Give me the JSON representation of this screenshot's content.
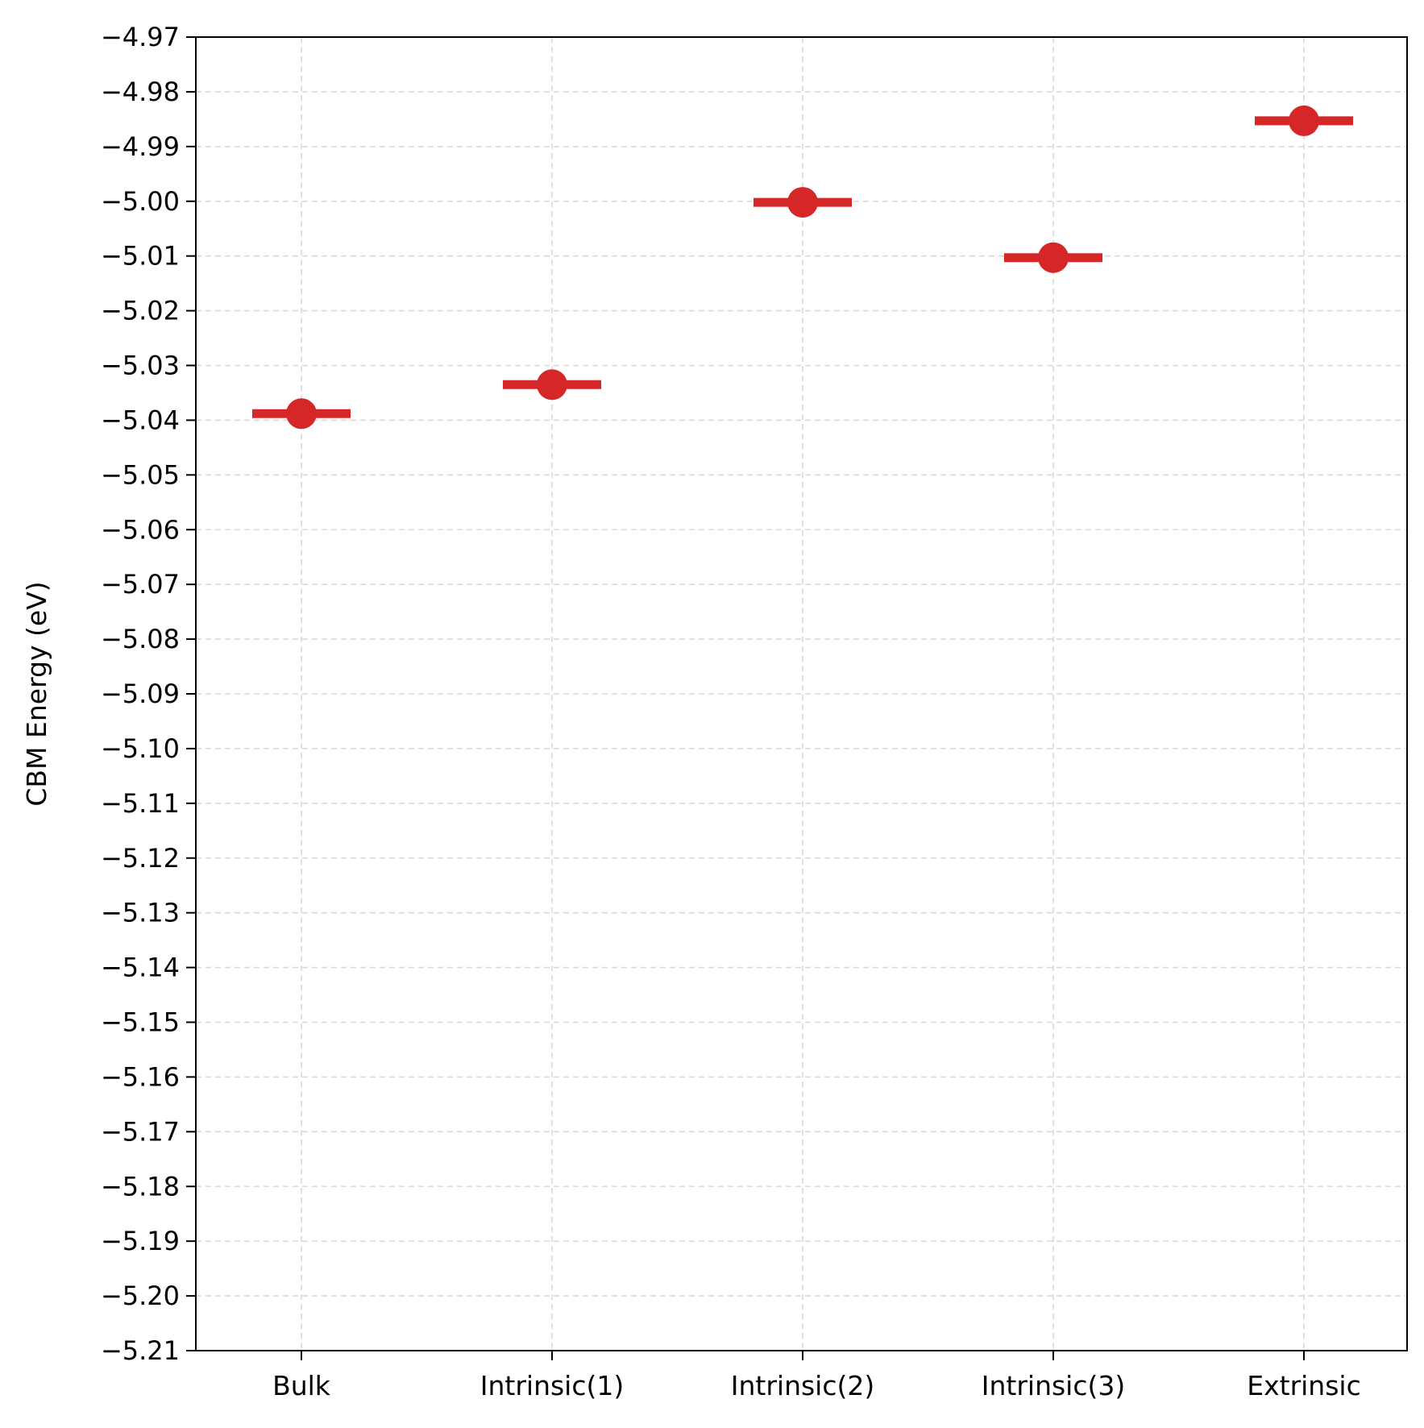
{
  "chart_data": {
    "type": "scatter",
    "title": "",
    "xlabel": "",
    "ylabel": "CBM Energy (eV)",
    "categories": [
      "Bulk",
      "Intrinsic(1)",
      "Intrinsic(2)",
      "Intrinsic(3)",
      "Extrinsic"
    ],
    "values": [
      -5.0388,
      -5.0335,
      -5.0002,
      -5.0103,
      -4.9853
    ],
    "ylim": [
      -5.21,
      -4.97
    ],
    "yticks": [
      "−4.97",
      "−4.98",
      "−4.99",
      "−5.00",
      "−5.01",
      "−5.02",
      "−5.03",
      "−5.04",
      "−5.05",
      "−5.06",
      "−5.07",
      "−5.08",
      "−5.09",
      "−5.10",
      "−5.11",
      "−5.12",
      "−5.13",
      "−5.14",
      "−5.15",
      "−5.16",
      "−5.17",
      "−5.18",
      "−5.19",
      "−5.20",
      "−5.21"
    ],
    "marker": "circle with horizontal level bar",
    "color": "#d62728",
    "grid": true,
    "grid_style": "dashed",
    "legend": "none"
  }
}
